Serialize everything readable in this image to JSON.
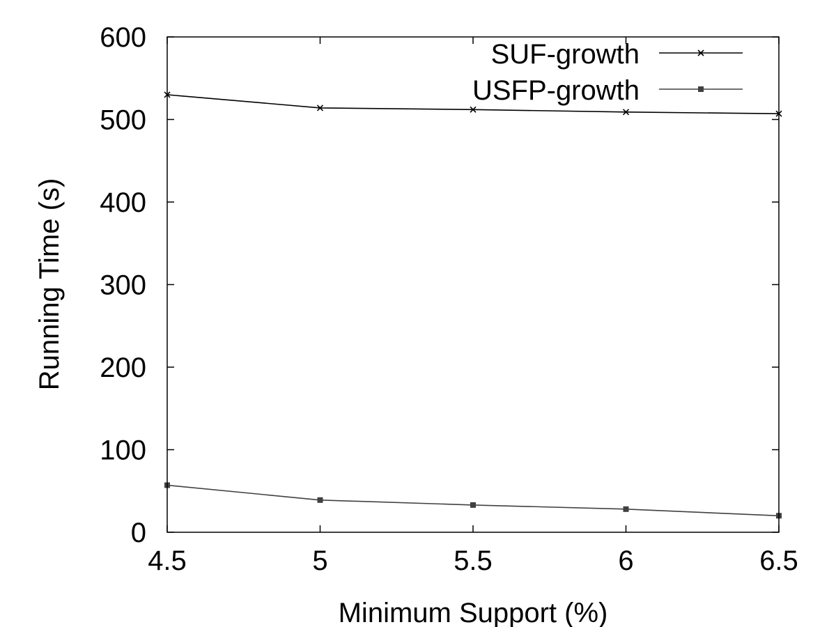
{
  "chart_data": {
    "type": "line",
    "title": "",
    "xlabel": "Minimum Support (%)",
    "ylabel": "Running Time (s)",
    "x": [
      4.5,
      5,
      5.5,
      6,
      6.5
    ],
    "x_tick_labels": [
      "4.5",
      "5",
      "5.5",
      "6",
      "6.5"
    ],
    "y_tick_labels": [
      "0",
      "100",
      "200",
      "300",
      "400",
      "500",
      "600"
    ],
    "y_ticks": [
      0,
      100,
      200,
      300,
      400,
      500,
      600
    ],
    "xlim": [
      4.5,
      6.5
    ],
    "ylim": [
      0,
      600
    ],
    "grid": false,
    "legend_position": "top-right",
    "series": [
      {
        "name": "SUF-growth",
        "marker": "x",
        "color": "#000000",
        "values": [
          530,
          514,
          512,
          509,
          507
        ]
      },
      {
        "name": "USFP-growth",
        "marker": "square",
        "color": "#404040",
        "values": [
          57,
          39,
          33,
          28,
          20
        ]
      }
    ]
  }
}
